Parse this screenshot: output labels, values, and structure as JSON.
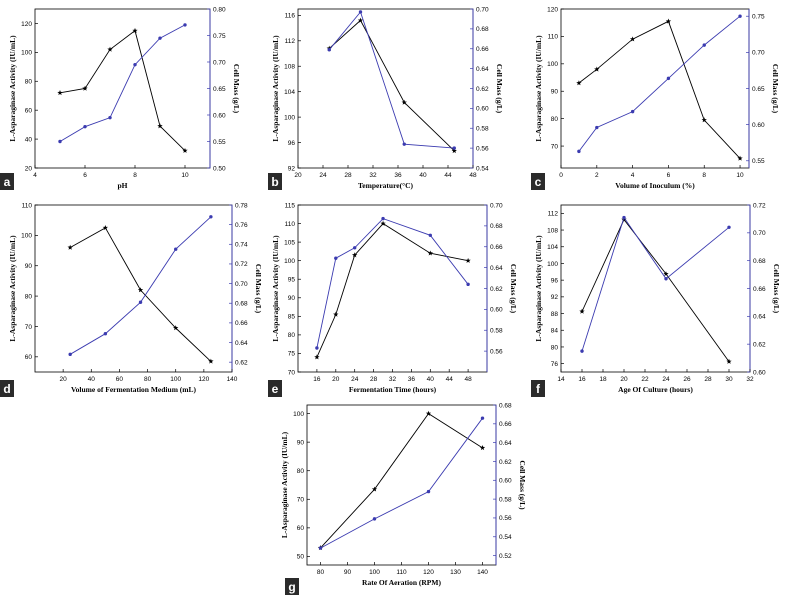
{
  "colors": {
    "activity": "#000000",
    "cell_mass": "#3b3bb0",
    "tag_bg": "#2b2b2b"
  },
  "chart_data": [
    {
      "type": "line",
      "tag": "a",
      "xlabel": "pH",
      "ylabel": "L-Asparaginase Activity (IU/mL)",
      "ylabel_right": "Cell Mass (g/L)",
      "xlim": [
        4,
        11
      ],
      "xticks": [
        4,
        6,
        8,
        10
      ],
      "ylim": [
        20,
        130
      ],
      "yticks": [
        20,
        40,
        60,
        80,
        100,
        120
      ],
      "ylim_right": [
        0.5,
        0.8
      ],
      "yticks_right": [
        "0.50",
        "0.55",
        "0.60",
        "0.65",
        "0.70",
        "0.75",
        "0.80"
      ],
      "series": [
        {
          "axis": "left",
          "marker": "star",
          "x": [
            5,
            6,
            7,
            8,
            9,
            10
          ],
          "y": [
            72,
            75,
            102,
            115,
            49,
            32
          ]
        },
        {
          "axis": "right",
          "marker": "circle",
          "x": [
            5,
            6,
            7,
            8,
            9,
            10
          ],
          "y": [
            0.55,
            0.578,
            0.595,
            0.695,
            0.745,
            0.77
          ]
        }
      ]
    },
    {
      "type": "line",
      "tag": "b",
      "xlabel": "Temperature(°C)",
      "ylabel": "L-Asparaginase Activity (IU/mL)",
      "ylabel_right": "Cell Mass (g/L)",
      "xlim": [
        20,
        48
      ],
      "xticks": [
        20,
        24,
        28,
        32,
        36,
        40,
        44,
        48
      ],
      "ylim": [
        92,
        117
      ],
      "yticks": [
        92,
        96,
        100,
        104,
        108,
        112,
        116
      ],
      "ylim_right": [
        0.54,
        0.7
      ],
      "yticks_right": [
        "0.54",
        "0.56",
        "0.58",
        "0.60",
        "0.62",
        "0.64",
        "0.66",
        "0.68",
        "0.70"
      ],
      "series": [
        {
          "axis": "left",
          "marker": "star",
          "x": [
            25,
            30,
            37,
            45
          ],
          "y": [
            110.8,
            115.2,
            102.3,
            94.7
          ]
        },
        {
          "axis": "right",
          "marker": "circle",
          "x": [
            25,
            30,
            37,
            45
          ],
          "y": [
            0.659,
            0.697,
            0.564,
            0.56
          ]
        }
      ]
    },
    {
      "type": "line",
      "tag": "c",
      "xlabel": "Volume of Inoculum (%)",
      "ylabel": "L-Asparaginase Activity (IU/mL)",
      "ylabel_right": "Cell Mass (g/L)",
      "xlim": [
        0,
        10.5
      ],
      "xticks": [
        0,
        2,
        4,
        6,
        8,
        10
      ],
      "ylim": [
        62,
        120
      ],
      "yticks": [
        70,
        80,
        90,
        100,
        110,
        120
      ],
      "ylim_right": [
        0.54,
        0.76
      ],
      "yticks_right": [
        "0.55",
        "0.60",
        "0.65",
        "0.70",
        "0.75"
      ],
      "series": [
        {
          "axis": "left",
          "marker": "star",
          "x": [
            1,
            2,
            4,
            6,
            8,
            10
          ],
          "y": [
            93,
            98,
            109,
            115.5,
            79.5,
            65.5
          ]
        },
        {
          "axis": "right",
          "marker": "circle",
          "x": [
            1,
            2,
            4,
            6,
            8,
            10
          ],
          "y": [
            0.563,
            0.596,
            0.618,
            0.664,
            0.71,
            0.75
          ]
        }
      ]
    },
    {
      "type": "line",
      "tag": "d",
      "xlabel": "Volume of Fermentation Medium (mL)",
      "ylabel": "L-Asparaginase Activity (IU/mL)",
      "ylabel_right": "Cell Mass (g/L)",
      "xlim": [
        0,
        140
      ],
      "xticks": [
        20,
        40,
        60,
        80,
        100,
        120,
        140
      ],
      "ylim": [
        55,
        110
      ],
      "yticks": [
        60,
        70,
        80,
        90,
        100,
        110
      ],
      "ylim_right": [
        0.61,
        0.78
      ],
      "yticks_right": [
        "0.62",
        "0.64",
        "0.66",
        "0.68",
        "0.70",
        "0.72",
        "0.74",
        "0.76",
        "0.78"
      ],
      "series": [
        {
          "axis": "left",
          "marker": "star",
          "x": [
            25,
            50,
            75,
            100,
            125
          ],
          "y": [
            96,
            102.5,
            82,
            69.5,
            58.5
          ]
        },
        {
          "axis": "right",
          "marker": "circle",
          "x": [
            25,
            50,
            75,
            100,
            125
          ],
          "y": [
            0.628,
            0.649,
            0.681,
            0.735,
            0.768
          ]
        }
      ]
    },
    {
      "type": "line",
      "tag": "e",
      "xlabel": "Fermentation Time (hours)",
      "ylabel": "L-Asparaginase Activity (IU/mL)",
      "ylabel_right": "Cell Mass (g/L)",
      "xlim": [
        12,
        52
      ],
      "xticks": [
        16,
        20,
        24,
        28,
        32,
        36,
        40,
        44,
        48
      ],
      "ylim": [
        70,
        115
      ],
      "yticks": [
        70,
        75,
        80,
        85,
        90,
        95,
        100,
        105,
        110,
        115
      ],
      "ylim_right": [
        0.54,
        0.7
      ],
      "yticks_right": [
        "0.56",
        "0.58",
        "0.60",
        "0.62",
        "0.64",
        "0.66",
        "0.68",
        "0.70"
      ],
      "series": [
        {
          "axis": "left",
          "marker": "star",
          "x": [
            16,
            20,
            24,
            30,
            40,
            48
          ],
          "y": [
            74,
            85.5,
            101.5,
            110,
            102,
            100
          ]
        },
        {
          "axis": "right",
          "marker": "circle",
          "x": [
            16,
            20,
            24,
            30,
            40,
            48
          ],
          "y": [
            0.563,
            0.649,
            0.659,
            0.687,
            0.671,
            0.624
          ]
        }
      ]
    },
    {
      "type": "line",
      "tag": "f",
      "xlabel": "Age Of Culture (hours)",
      "ylabel": "L-Asparaginase Activity (IU/mL)",
      "ylabel_right": "Cell Mass (g/L)",
      "xlim": [
        14,
        32
      ],
      "xticks": [
        14,
        16,
        18,
        20,
        22,
        24,
        26,
        28,
        30,
        32
      ],
      "ylim": [
        74,
        114
      ],
      "yticks": [
        76,
        80,
        84,
        88,
        92,
        96,
        100,
        104,
        108,
        112
      ],
      "ylim_right": [
        0.6,
        0.72
      ],
      "yticks_right": [
        "0.60",
        "0.62",
        "0.64",
        "0.66",
        "0.68",
        "0.70",
        "0.72"
      ],
      "series": [
        {
          "axis": "left",
          "marker": "star",
          "x": [
            16,
            20,
            24,
            30
          ],
          "y": [
            88.5,
            110.5,
            97.5,
            76.5
          ]
        },
        {
          "axis": "right",
          "marker": "circle",
          "x": [
            16,
            20,
            24,
            30
          ],
          "y": [
            0.615,
            0.711,
            0.667,
            0.704
          ]
        }
      ]
    },
    {
      "type": "line",
      "tag": "g",
      "xlabel": "Rate Of Aeration (RPM)",
      "ylabel": "L-Asparaginase Activity (IU/mL)",
      "ylabel_right": "Cell Mass (g/L)",
      "xlim": [
        75,
        145
      ],
      "xticks": [
        80,
        90,
        100,
        110,
        120,
        130,
        140
      ],
      "ylim": [
        47,
        103
      ],
      "yticks": [
        50,
        60,
        70,
        80,
        90,
        100
      ],
      "ylim_right": [
        0.51,
        0.68
      ],
      "yticks_right": [
        "0.52",
        "0.54",
        "0.56",
        "0.58",
        "0.60",
        "0.62",
        "0.64",
        "0.66",
        "0.68"
      ],
      "series": [
        {
          "axis": "left",
          "marker": "star",
          "x": [
            80,
            100,
            120,
            140
          ],
          "y": [
            53,
            73.5,
            100,
            88
          ]
        },
        {
          "axis": "right",
          "marker": "circle",
          "x": [
            80,
            100,
            120,
            140
          ],
          "y": [
            0.528,
            0.559,
            0.588,
            0.666
          ]
        }
      ]
    }
  ]
}
